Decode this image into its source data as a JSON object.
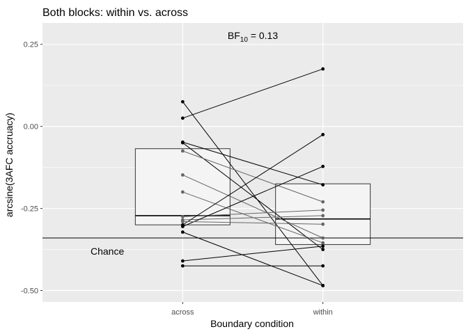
{
  "chart_data": {
    "type": "scatter",
    "title": "Both blocks: within vs. across",
    "xlabel": "Boundary condition",
    "ylabel": "arcsine(3AFC accruacy)",
    "categories": [
      "across",
      "within"
    ],
    "ylim": [
      -0.535,
      0.315
    ],
    "yticks": [
      0.25,
      0.0,
      -0.25,
      -0.5
    ],
    "yticklabels": [
      "0.25",
      "0.00",
      "-0.25",
      "-0.50"
    ],
    "grid": true,
    "bf_annotation": {
      "base": "BF",
      "sub": "10",
      "rest": " = 0.13"
    },
    "chance": {
      "label": "Chance",
      "y": -0.34
    },
    "summary_boxes": [
      {
        "category": "across",
        "lower": -0.3,
        "upper": -0.068,
        "mean": -0.272
      },
      {
        "category": "within",
        "lower": -0.36,
        "upper": -0.175,
        "mean": -0.282
      }
    ],
    "pairs": [
      {
        "across": 0.075,
        "within": -0.485,
        "color": "#000000"
      },
      {
        "across": 0.025,
        "within": 0.175,
        "color": "#000000"
      },
      {
        "across": -0.048,
        "within": -0.178,
        "color": "#000000"
      },
      {
        "across": -0.05,
        "within": -0.375,
        "color": "#000000"
      },
      {
        "across": -0.075,
        "within": -0.23,
        "color": "#666666"
      },
      {
        "across": -0.148,
        "within": -0.34,
        "color": "#666666"
      },
      {
        "across": -0.2,
        "within": -0.355,
        "color": "#666666"
      },
      {
        "across": -0.275,
        "within": -0.255,
        "color": "#666666"
      },
      {
        "across": -0.285,
        "within": -0.272,
        "color": "#666666"
      },
      {
        "across": -0.3,
        "within": -0.025,
        "color": "#000000"
      },
      {
        "across": -0.305,
        "within": -0.122,
        "color": "#000000"
      },
      {
        "across": -0.322,
        "within": -0.485,
        "color": "#000000"
      },
      {
        "across": -0.41,
        "within": -0.365,
        "color": "#000000"
      },
      {
        "across": -0.425,
        "within": -0.425,
        "color": "#000000"
      },
      {
        "across": -0.29,
        "within": -0.298,
        "color": "#666666"
      }
    ]
  }
}
